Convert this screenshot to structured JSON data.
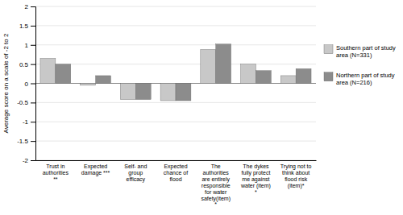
{
  "chart_data": {
    "type": "bar",
    "categories": [
      "Trust in\nauthorities\n**",
      "Expected\ndamage ***",
      "Self- and\ngroup\nefficacy",
      "Expected\nchance of\nflood",
      "The\nauthorities\nare entirely\nresponsible\nfor water\nsafety(item)\n*",
      "The dykes\nfully protect\nme against\nwater (item)\n*",
      "Trying not to\nthink about\nflood risk\n(item)*"
    ],
    "series": [
      {
        "name": "Southern part of study\narea (N=331)",
        "color": "#c8c8c8",
        "values": [
          0.65,
          -0.05,
          -0.42,
          -0.45,
          0.88,
          0.5,
          0.2
        ]
      },
      {
        "name": "Northern part of study\narea (N=216)",
        "color": "#8c8c8c",
        "values": [
          0.5,
          0.2,
          -0.42,
          -0.45,
          1.02,
          0.33,
          0.38
        ]
      }
    ],
    "ylabel": "Average score on a scale of -2 to 2",
    "ylim": [
      -2,
      2
    ],
    "yticks": [
      -2,
      -1.5,
      -1,
      -0.5,
      0,
      0.5,
      1,
      1.5,
      2
    ],
    "grid": true,
    "legend": "right"
  }
}
